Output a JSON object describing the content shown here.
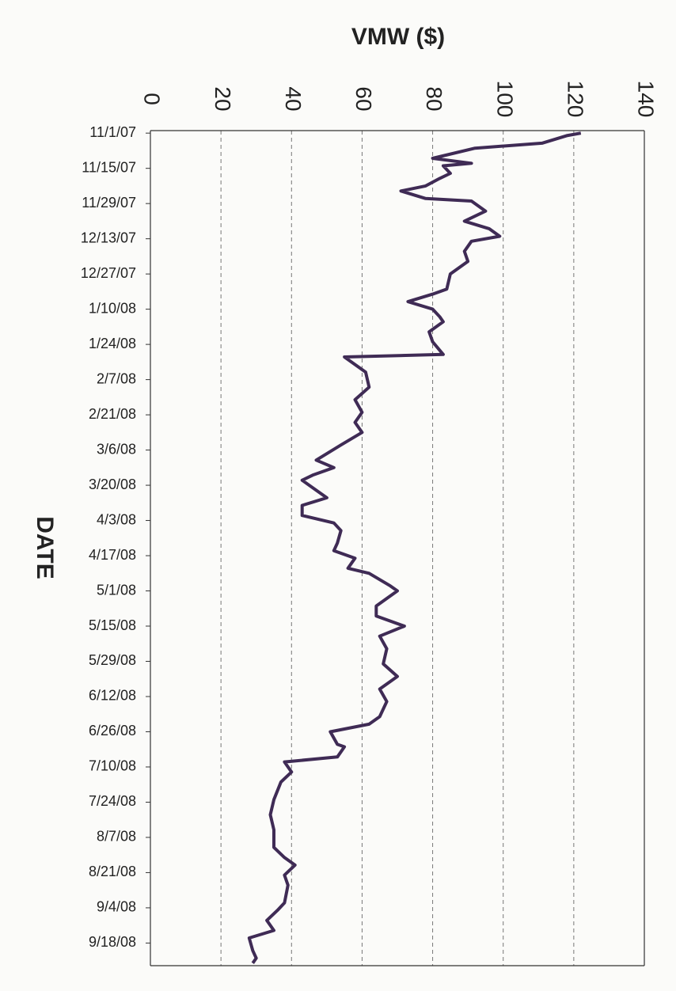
{
  "chart_data": {
    "type": "line",
    "title": "VMW ($)",
    "y_label": "DATE",
    "color": "#3f2b55",
    "x": [
      "11/1/07",
      "11/2/07",
      "11/5/07",
      "11/7/07",
      "11/11/07",
      "11/13/07",
      "11/14/07",
      "11/17/07",
      "11/19/07",
      "11/22/07",
      "11/24/07",
      "11/27/07",
      "11/28/07",
      "12/2/07",
      "12/6/07",
      "12/9/07",
      "12/12/07",
      "12/14/07",
      "12/18/07",
      "12/22/07",
      "12/27/07",
      "1/2/08",
      "1/4/08",
      "1/7/08",
      "1/10/08",
      "1/13/08",
      "1/15/08",
      "1/19/08",
      "1/23/08",
      "1/28/08",
      "1/29/08",
      "2/4/08",
      "2/10/08",
      "2/15/08",
      "2/20/08",
      "2/24/08",
      "2/28/08",
      "3/4/08",
      "3/10/08",
      "3/13/08",
      "3/16/08",
      "3/18/08",
      "3/22/08",
      "3/25/08",
      "3/28/08",
      "4/1/08",
      "4/4/08",
      "4/7/08",
      "4/12/08",
      "4/15/08",
      "4/18/08",
      "4/22/08",
      "4/24/08",
      "4/29/08",
      "5/1/08",
      "5/7/08",
      "5/11/08",
      "5/15/08",
      "5/19/08",
      "5/24/08",
      "5/30/08",
      "6/4/08",
      "6/9/08",
      "6/14/08",
      "6/20/08",
      "6/23/08",
      "6/26/08",
      "7/1/08",
      "7/2/08",
      "7/6/08",
      "7/8/08",
      "7/12/08",
      "7/16/08",
      "7/23/08",
      "7/29/08",
      "8/4/08",
      "8/11/08",
      "8/15/08",
      "8/18/08",
      "8/22/08",
      "8/26/08",
      "9/2/08",
      "9/5/08",
      "9/9/08",
      "9/13/08",
      "9/16/08",
      "9/21/08",
      "9/24/08",
      "9/26/08"
    ],
    "values": [
      122,
      118,
      111,
      92,
      80,
      91,
      83,
      85,
      82,
      78,
      71,
      78,
      91,
      95,
      89,
      96,
      99,
      91,
      89,
      90,
      85,
      84,
      80,
      73,
      80,
      82,
      83,
      79,
      80,
      83,
      55,
      61,
      62,
      58,
      60,
      58,
      60,
      54,
      47,
      52,
      46,
      43,
      47,
      50,
      43,
      43,
      52,
      54,
      53,
      52,
      58,
      56,
      62,
      68,
      70,
      64,
      64,
      72,
      65,
      67,
      66,
      70,
      65,
      67,
      65,
      62,
      51,
      53,
      55,
      53,
      38,
      40,
      37,
      35,
      34,
      35,
      35,
      38,
      41,
      38,
      39,
      38,
      36,
      33,
      35,
      28,
      29,
      30,
      29
    ],
    "xlim": [
      0,
      140
    ],
    "xticks": [
      0,
      20,
      40,
      60,
      80,
      100,
      120,
      140
    ],
    "ylim": [
      "10/31/07",
      "9/27/08"
    ],
    "yticks": [
      "11/1/07",
      "11/15/07",
      "11/29/07",
      "12/13/07",
      "12/27/07",
      "1/10/08",
      "1/24/08",
      "2/7/08",
      "2/21/08",
      "3/6/08",
      "3/20/08",
      "4/3/08",
      "4/17/08",
      "5/1/08",
      "5/15/08",
      "5/29/08",
      "6/12/08",
      "6/26/08",
      "7/10/08",
      "7/24/08",
      "8/7/08",
      "8/21/08",
      "9/4/08",
      "9/18/08"
    ],
    "grid": true
  }
}
